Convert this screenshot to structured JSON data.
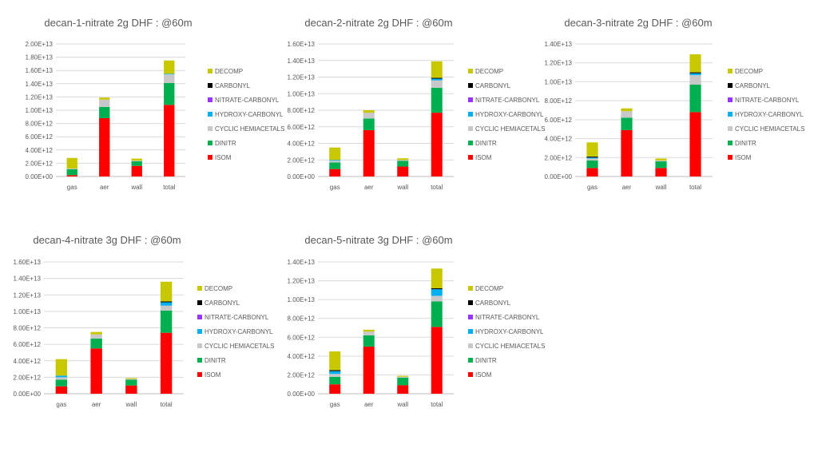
{
  "slide": {
    "background": "#ffffff"
  },
  "series_order": [
    "ISOM",
    "DINITR",
    "CYCLIC HEMIACETALS",
    "HYDROXY-CARBONYL",
    "NITRATE-CARBONYL",
    "CARBONYL",
    "DECOMP"
  ],
  "legend_order": [
    "DECOMP",
    "CARBONYL",
    "NITRATE-CARBONYL",
    "HYDROXY-CARBONYL",
    "CYCLIC HEMIACETALS",
    "DINITR",
    "ISOM"
  ],
  "colors": {
    "ISOM": "#ff0000",
    "DINITR": "#00b050",
    "CYCLIC HEMIACETALS": "#c8c8c8",
    "HYDROXY-CARBONYL": "#00b0f0",
    "NITRATE-CARBONYL": "#9933ff",
    "CARBONYL": "#000000",
    "DECOMP": "#c8c800"
  },
  "chart_data": [
    {
      "type": "bar",
      "stacked": true,
      "title": "decan-1-nitrate 2g DHF : @60m",
      "categories": [
        "gas",
        "aer",
        "wall",
        "total"
      ],
      "yticks": [
        "0.00E+00",
        "2.00E+12",
        "4.00E+12",
        "6.00E+12",
        "8.00E+12",
        "1.00E+13",
        "1.20E+13",
        "1.40E+13",
        "1.60E+13",
        "1.80E+13",
        "2.00E+13"
      ],
      "ylim": [
        0,
        20000000000000.0
      ],
      "legend_position": "right",
      "grid": true,
      "series": [
        {
          "name": "ISOM",
          "values": [
            200000000000.0,
            8800000000000.0,
            1600000000000.0,
            10800000000000.0
          ]
        },
        {
          "name": "DINITR",
          "values": [
            900000000000.0,
            1700000000000.0,
            700000000000.0,
            3300000000000.0
          ]
        },
        {
          "name": "CYCLIC HEMIACETALS",
          "values": [
            100000000000.0,
            1100000000000.0,
            100000000000.0,
            1300000000000.0
          ]
        },
        {
          "name": "HYDROXY-CARBONYL",
          "values": [
            0,
            0,
            0,
            100000000000.0
          ]
        },
        {
          "name": "NITRATE-CARBONYL",
          "values": [
            0,
            0,
            0,
            0
          ]
        },
        {
          "name": "CARBONYL",
          "values": [
            0,
            0,
            0,
            0
          ]
        },
        {
          "name": "DECOMP",
          "values": [
            1600000000000.0,
            300000000000.0,
            300000000000.0,
            2000000000000.0
          ]
        }
      ]
    },
    {
      "type": "bar",
      "stacked": true,
      "title": "decan-2-nitrate 2g DHF : @60m",
      "categories": [
        "gas",
        "aer",
        "wall",
        "total"
      ],
      "yticks": [
        "0.00E+00",
        "2.00E+12",
        "4.00E+12",
        "6.00E+12",
        "8.00E+12",
        "1.00E+13",
        "1.20E+13",
        "1.40E+13",
        "1.60E+13"
      ],
      "ylim": [
        0,
        16000000000000.0
      ],
      "legend_position": "right",
      "grid": true,
      "series": [
        {
          "name": "ISOM",
          "values": [
            900000000000.0,
            5600000000000.0,
            1200000000000.0,
            7700000000000.0
          ]
        },
        {
          "name": "DINITR",
          "values": [
            800000000000.0,
            1400000000000.0,
            700000000000.0,
            3000000000000.0
          ]
        },
        {
          "name": "CYCLIC HEMIACETALS",
          "values": [
            200000000000.0,
            700000000000.0,
            100000000000.0,
            900000000000.0
          ]
        },
        {
          "name": "HYDROXY-CARBONYL",
          "values": [
            100000000000.0,
            0,
            0,
            200000000000.0
          ]
        },
        {
          "name": "NITRATE-CARBONYL",
          "values": [
            0,
            0,
            0,
            0
          ]
        },
        {
          "name": "CARBONYL",
          "values": [
            0,
            0,
            0,
            100000000000.0
          ]
        },
        {
          "name": "DECOMP",
          "values": [
            1500000000000.0,
            300000000000.0,
            200000000000.0,
            2000000000000.0
          ]
        }
      ]
    },
    {
      "type": "bar",
      "stacked": true,
      "title": "decan-3-nitrate 2g DHF : @60m",
      "categories": [
        "gas",
        "aer",
        "wall",
        "total"
      ],
      "yticks": [
        "0.00E+00",
        "2.00E+12",
        "4.00E+12",
        "6.00E+12",
        "8.00E+12",
        "1.00E+13",
        "1.20E+13",
        "1.40E+13"
      ],
      "ylim": [
        0,
        14000000000000.0
      ],
      "legend_position": "right",
      "grid": true,
      "series": [
        {
          "name": "ISOM",
          "values": [
            900000000000.0,
            4900000000000.0,
            900000000000.0,
            6800000000000.0
          ]
        },
        {
          "name": "DINITR",
          "values": [
            800000000000.0,
            1300000000000.0,
            700000000000.0,
            2900000000000.0
          ]
        },
        {
          "name": "CYCLIC HEMIACETALS",
          "values": [
            200000000000.0,
            700000000000.0,
            100000000000.0,
            1000000000000.0
          ]
        },
        {
          "name": "HYDROXY-CARBONYL",
          "values": [
            100000000000.0,
            0,
            0,
            200000000000.0
          ]
        },
        {
          "name": "NITRATE-CARBONYL",
          "values": [
            0,
            0,
            0,
            0
          ]
        },
        {
          "name": "CARBONYL",
          "values": [
            100000000000.0,
            0,
            0,
            100000000000.0
          ]
        },
        {
          "name": "DECOMP",
          "values": [
            1500000000000.0,
            300000000000.0,
            200000000000.0,
            1900000000000.0
          ]
        }
      ]
    },
    {
      "type": "bar",
      "stacked": true,
      "title": "decan-4-nitrate 3g DHF : @60m",
      "categories": [
        "gas",
        "aer",
        "wall",
        "total"
      ],
      "yticks": [
        "0.00E+00",
        "2.00E+12",
        "4.00E+12",
        "6.00E+12",
        "8.00E+12",
        "1.00E+13",
        "1.20E+13",
        "1.40E+13",
        "1.60E+13"
      ],
      "ylim": [
        0,
        16000000000000.0
      ],
      "legend_position": "right",
      "grid": true,
      "series": [
        {
          "name": "ISOM",
          "values": [
            900000000000.0,
            5500000000000.0,
            1000000000000.0,
            7400000000000.0
          ]
        },
        {
          "name": "DINITR",
          "values": [
            800000000000.0,
            1200000000000.0,
            700000000000.0,
            2700000000000.0
          ]
        },
        {
          "name": "CYCLIC HEMIACETALS",
          "values": [
            300000000000.0,
            500000000000.0,
            100000000000.0,
            600000000000.0
          ]
        },
        {
          "name": "HYDROXY-CARBONYL",
          "values": [
            200000000000.0,
            0,
            0,
            400000000000.0
          ]
        },
        {
          "name": "NITRATE-CARBONYL",
          "values": [
            0,
            0,
            0,
            0
          ]
        },
        {
          "name": "CARBONYL",
          "values": [
            0,
            0,
            0,
            100000000000.0
          ]
        },
        {
          "name": "DECOMP",
          "values": [
            2000000000000.0,
            300000000000.0,
            100000000000.0,
            2400000000000.0
          ]
        }
      ]
    },
    {
      "type": "bar",
      "stacked": true,
      "title": "decan-5-nitrate 3g DHF : @60m",
      "categories": [
        "gas",
        "aer",
        "wall",
        "total"
      ],
      "yticks": [
        "0.00E+00",
        "2.00E+12",
        "4.00E+12",
        "6.00E+12",
        "8.00E+12",
        "1.00E+13",
        "1.20E+13",
        "1.40E+13"
      ],
      "ylim": [
        0,
        14000000000000.0
      ],
      "legend_position": "right",
      "grid": true,
      "series": [
        {
          "name": "ISOM",
          "values": [
            1000000000000.0,
            5000000000000.0,
            900000000000.0,
            7100000000000.0
          ]
        },
        {
          "name": "DINITR",
          "values": [
            800000000000.0,
            1200000000000.0,
            800000000000.0,
            2700000000000.0
          ]
        },
        {
          "name": "CYCLIC HEMIACETALS",
          "values": [
            300000000000.0,
            400000000000.0,
            100000000000.0,
            600000000000.0
          ]
        },
        {
          "name": "HYDROXY-CARBONYL",
          "values": [
            300000000000.0,
            0,
            0,
            700000000000.0
          ]
        },
        {
          "name": "NITRATE-CARBONYL",
          "values": [
            0,
            0,
            0,
            0
          ]
        },
        {
          "name": "CARBONYL",
          "values": [
            100000000000.0,
            0,
            0,
            100000000000.0
          ]
        },
        {
          "name": "DECOMP",
          "values": [
            2000000000000.0,
            200000000000.0,
            100000000000.0,
            2100000000000.0
          ]
        }
      ]
    }
  ]
}
